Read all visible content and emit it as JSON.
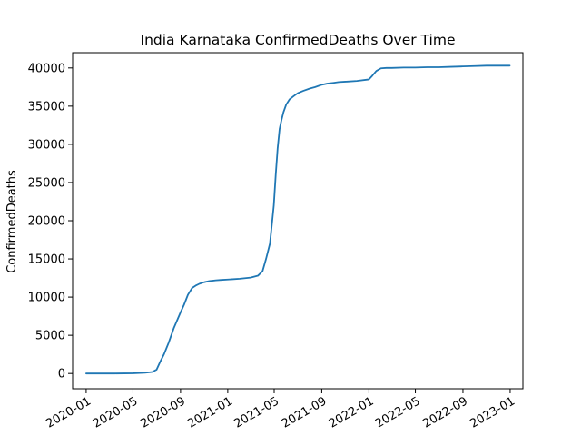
{
  "chart_data": {
    "type": "line",
    "title": "India Karnataka ConfirmedDeaths Over Time",
    "xlabel": "",
    "ylabel": "ConfirmedDeaths",
    "xlim": [
      "2019-11-27",
      "2023-02-03"
    ],
    "ylim": [
      -2000,
      42000
    ],
    "x_ticks": [
      "2020-01",
      "2020-05",
      "2020-09",
      "2021-01",
      "2021-05",
      "2021-09",
      "2022-01",
      "2022-05",
      "2022-09",
      "2023-01"
    ],
    "y_ticks": [
      0,
      5000,
      10000,
      15000,
      20000,
      25000,
      30000,
      35000,
      40000
    ],
    "grid": false,
    "legend": "none",
    "series": [
      {
        "color": "#1f77b4",
        "x": [
          "2020-01-01",
          "2020-03-15",
          "2020-05-01",
          "2020-06-01",
          "2020-06-20",
          "2020-07-01",
          "2020-07-10",
          "2020-07-20",
          "2020-08-01",
          "2020-08-15",
          "2020-09-01",
          "2020-09-10",
          "2020-09-20",
          "2020-10-01",
          "2020-10-10",
          "2020-10-20",
          "2020-11-01",
          "2020-11-15",
          "2020-12-01",
          "2020-12-15",
          "2021-01-01",
          "2021-02-01",
          "2021-03-01",
          "2021-03-20",
          "2021-04-01",
          "2021-04-10",
          "2021-04-20",
          "2021-04-30",
          "2021-05-05",
          "2021-05-10",
          "2021-05-15",
          "2021-05-20",
          "2021-05-25",
          "2021-06-01",
          "2021-06-10",
          "2021-06-20",
          "2021-07-01",
          "2021-07-15",
          "2021-08-01",
          "2021-08-15",
          "2021-09-01",
          "2021-09-15",
          "2021-10-01",
          "2021-10-15",
          "2021-11-01",
          "2021-12-01",
          "2022-01-01",
          "2022-01-10",
          "2022-01-20",
          "2022-02-01",
          "2022-02-15",
          "2022-03-01",
          "2022-04-01",
          "2022-05-01",
          "2022-06-01",
          "2022-07-01",
          "2022-08-01",
          "2022-09-01",
          "2022-10-01",
          "2022-11-01",
          "2022-12-01",
          "2022-12-31"
        ],
        "y": [
          0,
          0,
          30,
          100,
          200,
          500,
          1500,
          2500,
          4000,
          6000,
          8000,
          9000,
          10300,
          11200,
          11500,
          11750,
          11950,
          12100,
          12200,
          12250,
          12300,
          12400,
          12550,
          12800,
          13400,
          15000,
          17000,
          22000,
          26000,
          29500,
          32000,
          33200,
          34200,
          35200,
          35900,
          36300,
          36700,
          37000,
          37300,
          37500,
          37800,
          37950,
          38050,
          38150,
          38200,
          38300,
          38500,
          39000,
          39600,
          39950,
          40000,
          40000,
          40050,
          40050,
          40100,
          40100,
          40150,
          40200,
          40250,
          40300,
          40300,
          40300
        ]
      }
    ]
  }
}
